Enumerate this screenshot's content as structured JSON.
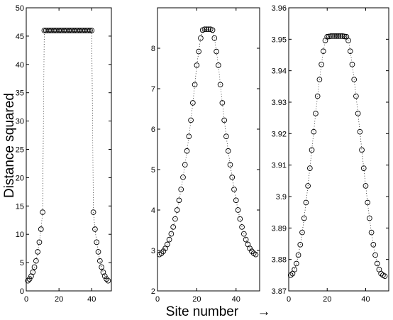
{
  "figure": {
    "ylabel": "Distance squared",
    "xlabel": "Site number",
    "xlabel_arrow": "→"
  },
  "chart_data": [
    {
      "type": "scatter",
      "marker": "open-circle",
      "connector": "dotted",
      "xlim": [
        0,
        52
      ],
      "ylim": [
        0,
        50
      ],
      "xticks": [
        0,
        20,
        40
      ],
      "yticks": [
        0,
        5,
        10,
        15,
        20,
        25,
        30,
        35,
        40,
        45,
        50
      ],
      "ytick_labels": [
        "0",
        "5",
        "10",
        "15",
        "20",
        "25",
        "30",
        "35",
        "40",
        "45",
        "50"
      ],
      "series": [
        {
          "x": [
            1,
            2,
            3,
            4,
            5,
            6,
            7,
            8,
            9,
            10,
            11,
            12,
            13,
            14,
            15,
            16,
            17,
            18,
            19,
            20,
            21,
            22,
            23,
            24,
            25,
            26,
            27,
            28,
            29,
            30,
            31,
            32,
            33,
            34,
            35,
            36,
            37,
            38,
            39,
            40,
            41,
            42,
            43,
            44,
            45,
            46,
            47,
            48,
            49,
            50
          ],
          "y": [
            1.8,
            2.1,
            2.6,
            3.3,
            4.2,
            5.3,
            6.9,
            8.6,
            10.9,
            13.9,
            46,
            46,
            46,
            46,
            46,
            46,
            46,
            46,
            46,
            46,
            46,
            46,
            46,
            46,
            46,
            46,
            46,
            46,
            46,
            46,
            46,
            46,
            46,
            46,
            46,
            46,
            46,
            46,
            46,
            46,
            13.9,
            10.9,
            8.6,
            6.9,
            5.3,
            4.2,
            3.3,
            2.6,
            2.1,
            1.8
          ]
        }
      ]
    },
    {
      "type": "scatter",
      "marker": "open-circle",
      "connector": "dotted",
      "xlim": [
        0,
        52
      ],
      "ylim": [
        2,
        9
      ],
      "xticks": [
        0,
        20,
        40
      ],
      "yticks": [
        2,
        3,
        4,
        5,
        6,
        7,
        8
      ],
      "ytick_labels": [
        "2",
        "3",
        "4",
        "5",
        "6",
        "7",
        "8"
      ],
      "series": [
        {
          "x": [
            1,
            2,
            3,
            4,
            5,
            6,
            7,
            8,
            9,
            10,
            11,
            12,
            13,
            14,
            15,
            16,
            17,
            18,
            19,
            20,
            21,
            22,
            23,
            24,
            25,
            26,
            27,
            28,
            29,
            30,
            31,
            32,
            33,
            34,
            35,
            36,
            37,
            38,
            39,
            40,
            41,
            42,
            43,
            44,
            45,
            46,
            47,
            48,
            49,
            50
          ],
          "y": [
            2.9,
            2.93,
            2.98,
            3.05,
            3.15,
            3.27,
            3.41,
            3.58,
            3.78,
            4.0,
            4.24,
            4.51,
            4.81,
            5.12,
            5.46,
            5.82,
            6.22,
            6.65,
            7.1,
            7.58,
            7.92,
            8.25,
            8.45,
            8.47,
            8.47,
            8.47,
            8.47,
            8.45,
            8.25,
            7.92,
            7.58,
            7.1,
            6.65,
            6.22,
            5.82,
            5.46,
            5.12,
            4.81,
            4.51,
            4.24,
            4.0,
            3.78,
            3.58,
            3.41,
            3.27,
            3.15,
            3.05,
            2.98,
            2.93,
            2.9
          ]
        }
      ]
    },
    {
      "type": "scatter",
      "marker": "open-circle",
      "connector": "dotted",
      "xlim": [
        0,
        52
      ],
      "ylim": [
        3.87,
        3.96
      ],
      "xticks": [
        0,
        20,
        40
      ],
      "yticks": [
        3.87,
        3.88,
        3.89,
        3.9,
        3.91,
        3.92,
        3.93,
        3.94,
        3.95,
        3.96
      ],
      "ytick_labels": [
        "3.87",
        "3.88",
        "3.89",
        "3.9",
        "3.91",
        "3.92",
        "3.93",
        "3.94",
        "3.95",
        "3.96"
      ],
      "series": [
        {
          "x": [
            1,
            2,
            3,
            4,
            5,
            6,
            7,
            8,
            9,
            10,
            11,
            12,
            13,
            14,
            15,
            16,
            17,
            18,
            19,
            20,
            21,
            22,
            23,
            24,
            25,
            26,
            27,
            28,
            29,
            30,
            31,
            32,
            33,
            34,
            35,
            36,
            37,
            38,
            39,
            40,
            41,
            42,
            43,
            44,
            45,
            46,
            47,
            48,
            49,
            50
          ],
          "y": [
            3.875,
            3.8755,
            3.8768,
            3.8787,
            3.8814,
            3.8847,
            3.8886,
            3.8931,
            3.8981,
            3.9034,
            3.909,
            3.9148,
            3.9206,
            3.9264,
            3.9319,
            3.9372,
            3.942,
            3.9462,
            3.9496,
            3.9508,
            3.9509,
            3.951,
            3.951,
            3.951,
            3.951,
            3.951,
            3.951,
            3.951,
            3.9509,
            3.9508,
            3.9496,
            3.9462,
            3.942,
            3.9372,
            3.9319,
            3.9264,
            3.9206,
            3.9148,
            3.909,
            3.9034,
            3.8981,
            3.8931,
            3.8886,
            3.8847,
            3.8814,
            3.8787,
            3.8768,
            3.8755,
            3.875,
            3.8747
          ]
        }
      ]
    }
  ]
}
